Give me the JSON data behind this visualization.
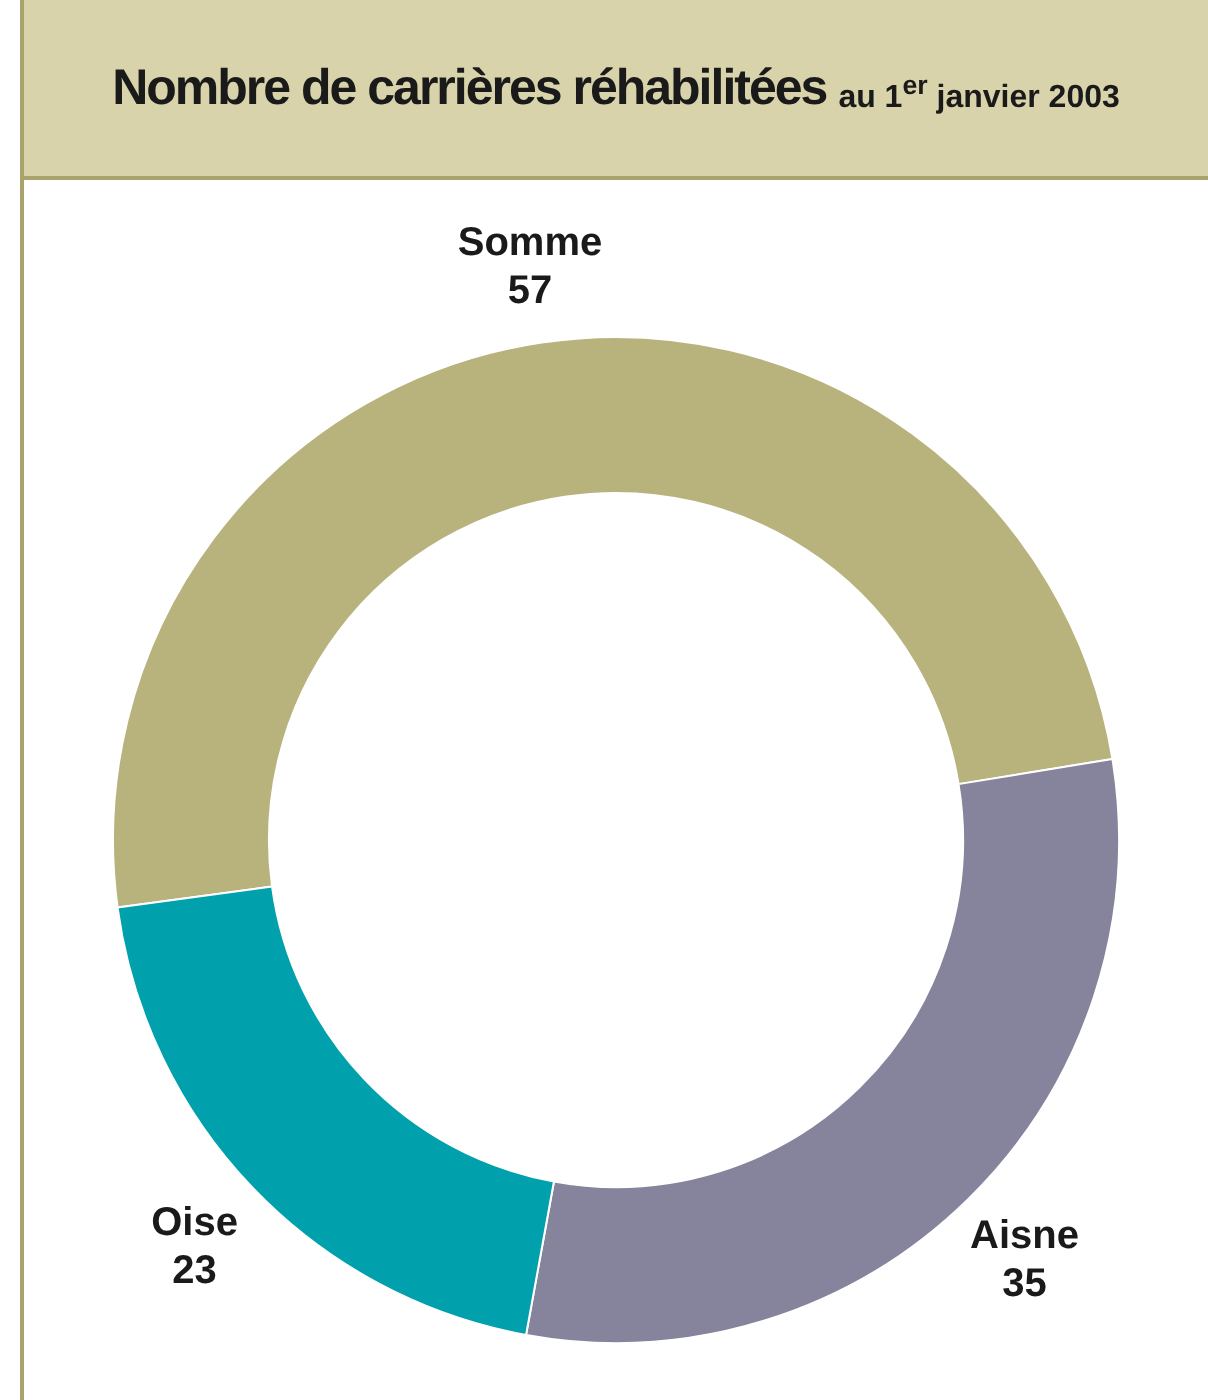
{
  "chart_data": {
    "type": "donut",
    "title": "Nombre de carrières réhabilitées",
    "subtitle": "au 1$^{er}$ janvier 2003",
    "categories": [
      "Somme",
      "Aisne",
      "Oise"
    ],
    "values": [
      57,
      35,
      23
    ],
    "colors": [
      "#b8b27c",
      "#86849c",
      "#00a0ac"
    ],
    "data_labels": true,
    "legend": false
  }
}
